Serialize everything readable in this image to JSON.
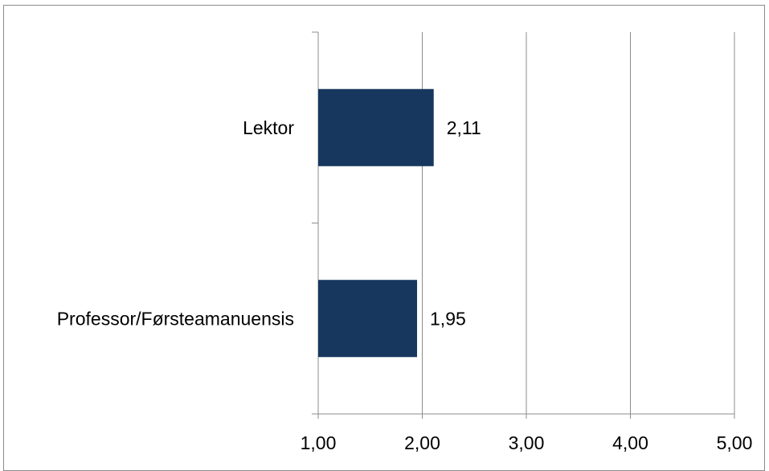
{
  "chart_data": {
    "type": "bar",
    "orientation": "horizontal",
    "categories": [
      "Lektor",
      "Professor/Førsteamanuensis"
    ],
    "values": [
      2.11,
      1.95
    ],
    "value_labels": [
      "2,11",
      "1,95"
    ],
    "xlim": [
      1,
      5
    ],
    "x_ticks": [
      1,
      2,
      3,
      4,
      5
    ],
    "x_tick_labels": [
      "1,00",
      "2,00",
      "3,00",
      "4,00",
      "5,00"
    ],
    "title": "",
    "xlabel": "",
    "ylabel": "",
    "grid": true,
    "legend": "none",
    "bar_color": "#17375e"
  }
}
